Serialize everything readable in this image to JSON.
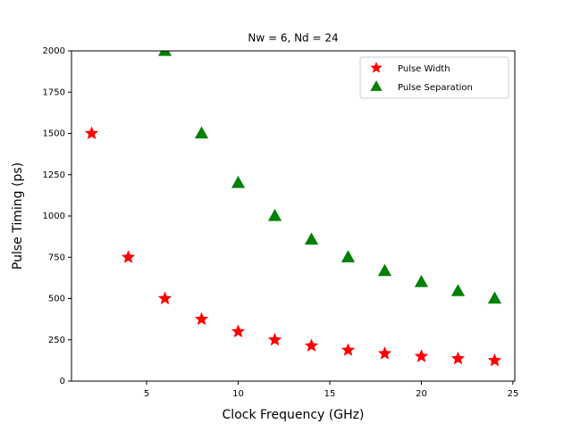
{
  "chart_data": {
    "type": "scatter",
    "title": "Nw = 6, Nd = 24",
    "xlabel": "Clock Frequency (GHz)",
    "ylabel": "Pulse Timing (ps)",
    "xlim": [
      0.9,
      25.1
    ],
    "xticks": [
      5,
      10,
      15,
      20,
      25
    ],
    "ylim": [
      0,
      2000
    ],
    "yticks": [
      0,
      250,
      500,
      750,
      1000,
      1250,
      1500,
      1750,
      2000
    ],
    "legend": "upper right",
    "series": [
      {
        "name": "Pulse Width",
        "color": "#ff0000",
        "marker": "star",
        "x": [
          2,
          4,
          6,
          8,
          10,
          12,
          14,
          16,
          18,
          20,
          22,
          24
        ],
        "values": [
          1500,
          750,
          500,
          375,
          300,
          250,
          214,
          187.5,
          167,
          150,
          136,
          125
        ]
      },
      {
        "name": "Pulse Separation",
        "color": "#008000",
        "marker": "triangle",
        "x": [
          6,
          8,
          10,
          12,
          14,
          16,
          18,
          20,
          22,
          24
        ],
        "values": [
          2000,
          1500,
          1200,
          1000,
          857,
          750,
          667,
          600,
          545,
          500
        ]
      }
    ]
  }
}
